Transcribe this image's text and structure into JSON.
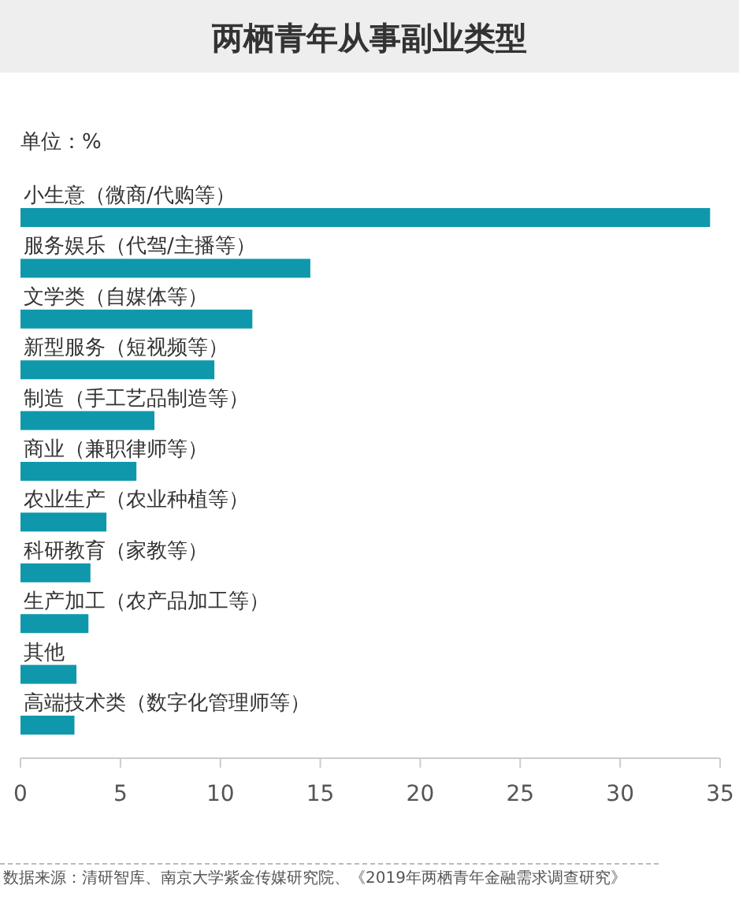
{
  "chart_data": {
    "type": "bar",
    "orientation": "horizontal",
    "title": "两栖青年从事副业类型",
    "subtitle": "单位：%",
    "categories": [
      "小生意（微商/代购等）",
      "服务娱乐（代驾/主播等）",
      "文学类（自媒体等）",
      "新型服务（短视频等）",
      "制造（手工艺品制造等）",
      "商业（兼职律师等）",
      "农业生产（农业种植等）",
      "科研教育（家教等）",
      "生产加工（农产品加工等）",
      "其他",
      "高端技术类（数字化管理师等）"
    ],
    "values": [
      34.5,
      14.5,
      11.6,
      9.7,
      6.7,
      5.8,
      4.3,
      3.5,
      3.4,
      2.8,
      2.7
    ],
    "color": "#0f98ab",
    "xlim": [
      0,
      35
    ],
    "xticks": [
      0,
      5,
      10,
      15,
      20,
      25,
      30,
      35
    ],
    "annotations": [
      "数据来源：清研智库、南京大学紫金传媒研究院、《2019年两栖青年金融需求调查研究》"
    ]
  }
}
